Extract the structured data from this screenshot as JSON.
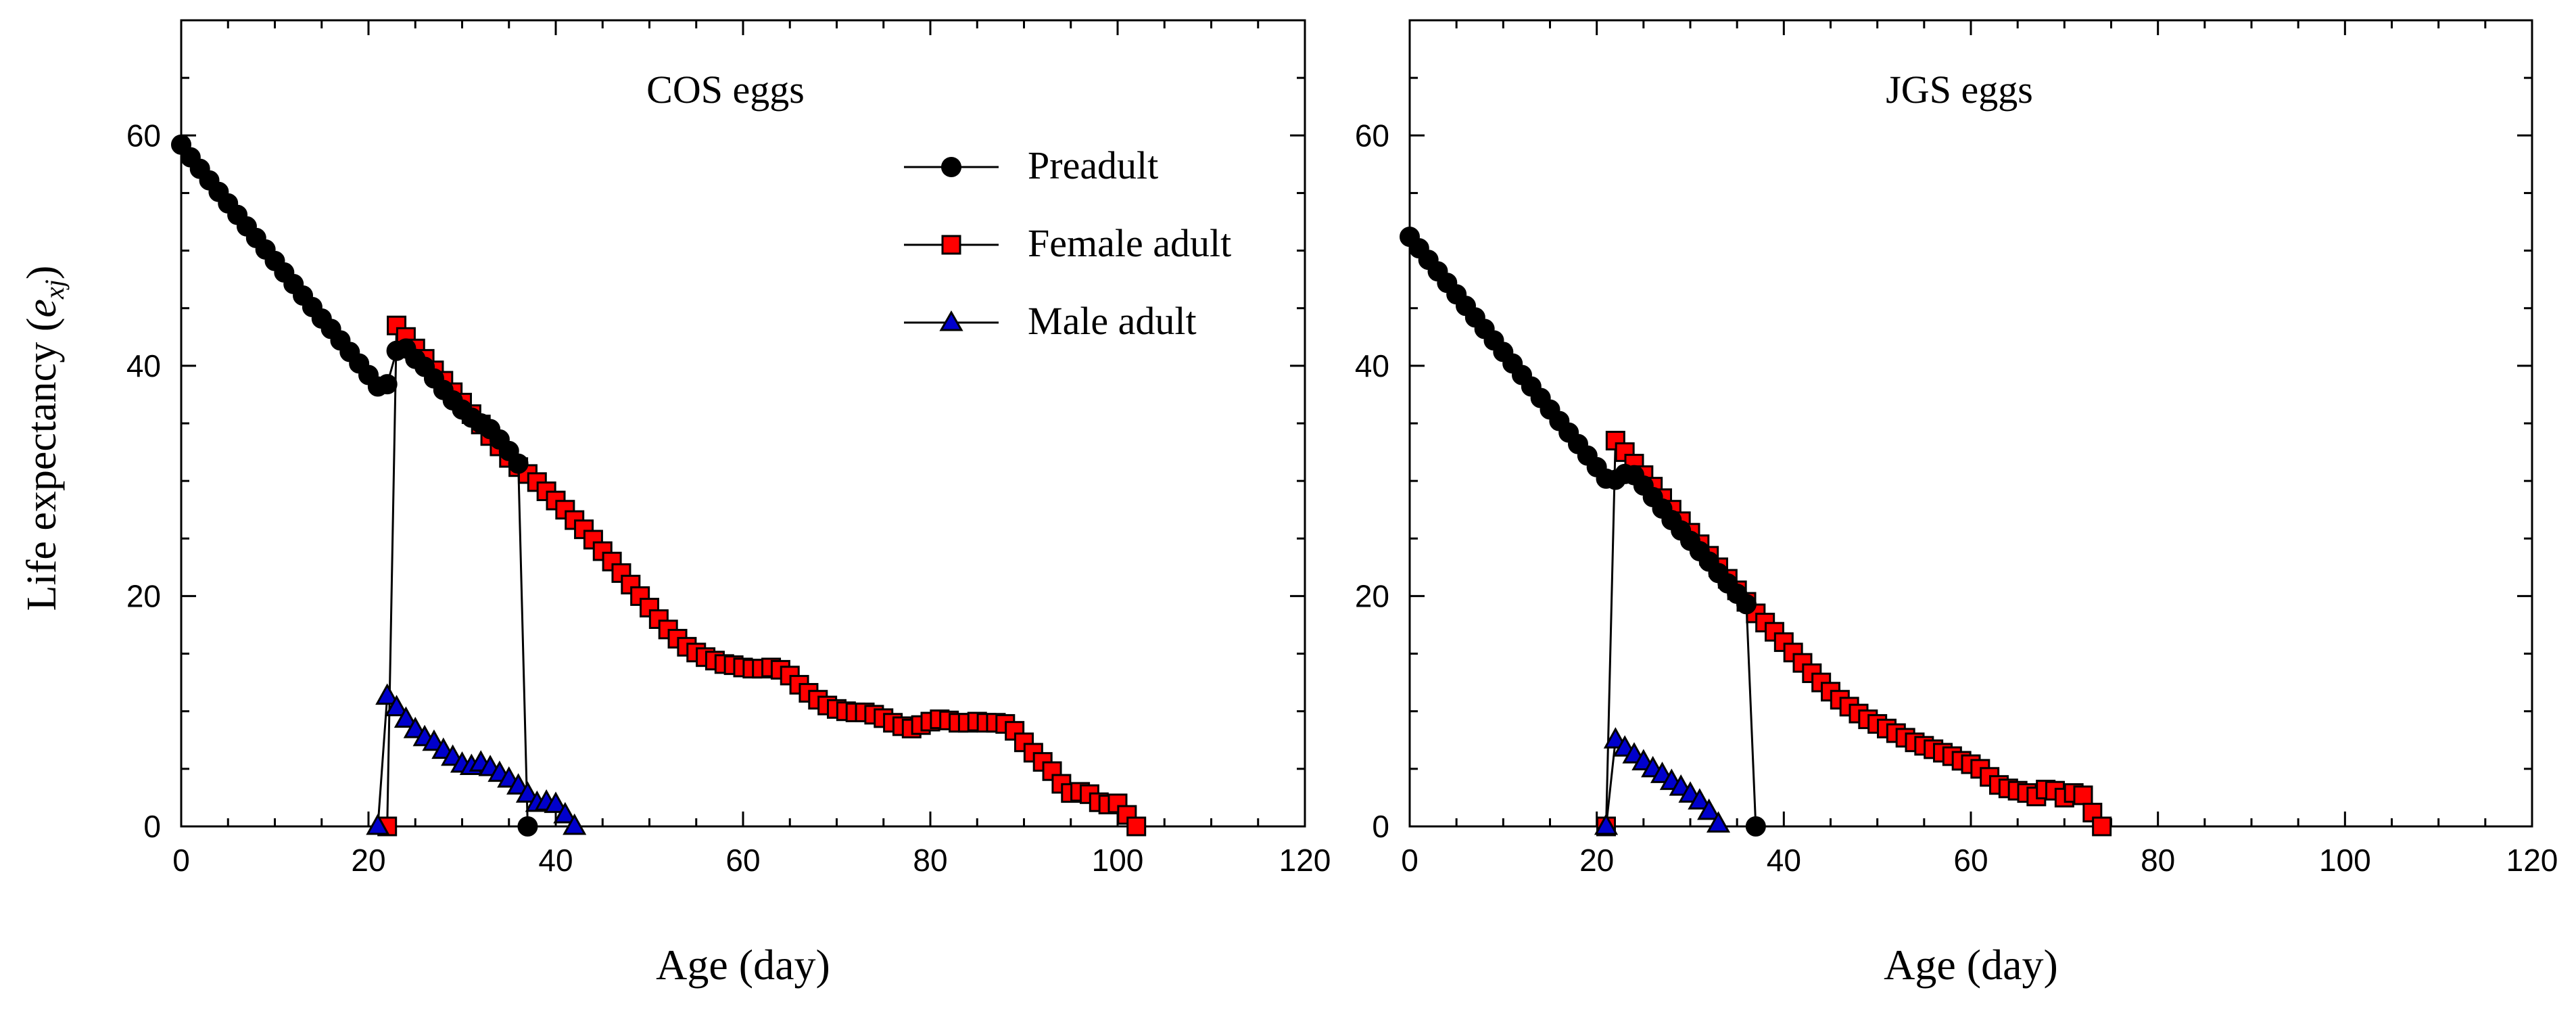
{
  "figure": {
    "ylabel_main": "Life expectancy (",
    "ylabel_sym": "e",
    "ylabel_sub": "xj",
    "ylabel_close": ")"
  },
  "legend": [
    {
      "label": "Preadult",
      "marker": "circle",
      "color": "#000000"
    },
    {
      "label": "Female adult",
      "marker": "square",
      "color": "#ff0000"
    },
    {
      "label": "Male adult",
      "marker": "triangle",
      "color": "#0000cc"
    }
  ],
  "chart_data": [
    {
      "type": "line",
      "title": "COS eggs",
      "xlabel": "Age (day)",
      "ylabel": "Life expectancy (e_xj)",
      "xlim": [
        0,
        120
      ],
      "ylim": [
        0,
        70
      ],
      "xticks": [
        0,
        20,
        40,
        60,
        80,
        100,
        120
      ],
      "yticks": [
        0,
        20,
        40,
        60
      ],
      "legend_position": "top-right",
      "series": [
        {
          "name": "Preadult",
          "x": [
            0,
            1,
            2,
            3,
            4,
            5,
            6,
            7,
            8,
            9,
            10,
            11,
            12,
            13,
            14,
            15,
            16,
            17,
            18,
            19,
            20,
            21,
            22,
            23,
            24,
            25,
            26,
            27,
            28,
            29,
            30,
            31,
            32,
            33,
            34,
            35,
            36,
            37
          ],
          "y": [
            59.2,
            58.1,
            57.1,
            56.1,
            55.1,
            54.1,
            53.1,
            52.1,
            51.1,
            50.1,
            49.1,
            48.1,
            47.1,
            46.1,
            45.1,
            44.1,
            43.2,
            42.2,
            41.2,
            40.2,
            39.2,
            38.2,
            38.4,
            41.3,
            41.5,
            40.6,
            39.9,
            38.9,
            37.9,
            37.0,
            36.2,
            35.5,
            35.0,
            34.5,
            33.6,
            32.6,
            31.5,
            0
          ]
        },
        {
          "name": "Female adult",
          "x": [
            22,
            23,
            24,
            25,
            26,
            27,
            28,
            29,
            30,
            31,
            32,
            33,
            34,
            35,
            36,
            37,
            38,
            39,
            40,
            41,
            42,
            43,
            44,
            45,
            46,
            47,
            48,
            49,
            50,
            51,
            52,
            53,
            54,
            55,
            56,
            57,
            58,
            59,
            60,
            61,
            62,
            63,
            64,
            65,
            66,
            67,
            68,
            69,
            70,
            71,
            72,
            73,
            74,
            75,
            76,
            77,
            78,
            79,
            80,
            81,
            82,
            83,
            84,
            85,
            86,
            87,
            88,
            89,
            90,
            91,
            92,
            93,
            94,
            95,
            96,
            97,
            98,
            99,
            100,
            101,
            102
          ],
          "y": [
            0,
            43.5,
            42.5,
            41.5,
            40.6,
            39.6,
            38.7,
            37.7,
            36.8,
            35.8,
            34.9,
            33.9,
            33.0,
            32.0,
            31.2,
            30.6,
            29.9,
            29.1,
            28.3,
            27.5,
            26.6,
            25.8,
            24.9,
            23.9,
            23.0,
            22.0,
            21.0,
            20.0,
            19.0,
            18.0,
            17.1,
            16.3,
            15.6,
            15.1,
            14.7,
            14.4,
            14.1,
            14.0,
            13.8,
            13.7,
            13.7,
            13.8,
            13.6,
            13.1,
            12.3,
            11.6,
            11.0,
            10.5,
            10.2,
            10.0,
            9.9,
            9.9,
            9.7,
            9.4,
            9.0,
            8.7,
            8.5,
            8.8,
            9.1,
            9.3,
            9.2,
            9.0,
            9.0,
            9.1,
            9.0,
            9.0,
            8.9,
            8.3,
            7.3,
            6.4,
            5.6,
            4.8,
            3.7,
            2.9,
            3.0,
            2.8,
            2.1,
            1.9,
            2.0,
            1.0,
            0
          ]
        },
        {
          "name": "Male adult",
          "x": [
            21,
            22,
            23,
            24,
            25,
            26,
            27,
            28,
            29,
            30,
            31,
            32,
            33,
            34,
            35,
            36,
            37,
            38,
            39,
            40,
            41,
            42
          ],
          "y": [
            0,
            11.3,
            10.3,
            9.3,
            8.4,
            7.7,
            7.3,
            6.6,
            6.0,
            5.4,
            5.2,
            5.5,
            5.1,
            4.6,
            4.1,
            3.5,
            2.8,
            2.0,
            2.1,
            1.9,
            1.0,
            0
          ]
        }
      ]
    },
    {
      "type": "line",
      "title": "JGS eggs",
      "xlabel": "Age (day)",
      "ylabel": "",
      "xlim": [
        0,
        120
      ],
      "ylim": [
        0,
        70
      ],
      "xticks": [
        0,
        20,
        40,
        60,
        80,
        100,
        120
      ],
      "yticks": [
        0,
        20,
        40,
        60
      ],
      "series": [
        {
          "name": "Preadult",
          "x": [
            0,
            1,
            2,
            3,
            4,
            5,
            6,
            7,
            8,
            9,
            10,
            11,
            12,
            13,
            14,
            15,
            16,
            17,
            18,
            19,
            20,
            21,
            22,
            23,
            24,
            25,
            26,
            27,
            28,
            29,
            30,
            31,
            32,
            33,
            34,
            35,
            36,
            37
          ],
          "y": [
            51.2,
            50.2,
            49.2,
            48.2,
            47.2,
            46.2,
            45.2,
            44.2,
            43.2,
            42.2,
            41.2,
            40.2,
            39.2,
            38.2,
            37.2,
            36.2,
            35.2,
            34.2,
            33.2,
            32.2,
            31.2,
            30.2,
            30.1,
            30.6,
            30.5,
            29.6,
            28.6,
            27.6,
            26.6,
            25.7,
            24.8,
            23.9,
            23.0,
            22.0,
            21.1,
            20.2,
            19.3,
            0
          ]
        },
        {
          "name": "Female adult",
          "x": [
            21,
            22,
            23,
            24,
            25,
            26,
            27,
            28,
            29,
            30,
            31,
            32,
            33,
            34,
            35,
            36,
            37,
            38,
            39,
            40,
            41,
            42,
            43,
            44,
            45,
            46,
            47,
            48,
            49,
            50,
            51,
            52,
            53,
            54,
            55,
            56,
            57,
            58,
            59,
            60,
            61,
            62,
            63,
            64,
            65,
            66,
            67,
            68,
            69,
            70,
            71,
            72,
            73,
            74
          ],
          "y": [
            0,
            33.5,
            32.5,
            31.5,
            30.5,
            29.5,
            28.5,
            27.5,
            26.5,
            25.5,
            24.5,
            23.5,
            22.5,
            21.5,
            20.5,
            19.5,
            18.5,
            17.7,
            16.9,
            16.0,
            15.1,
            14.2,
            13.3,
            12.5,
            11.7,
            11.0,
            10.4,
            9.8,
            9.3,
            8.9,
            8.5,
            8.1,
            7.7,
            7.3,
            7.0,
            6.7,
            6.4,
            6.1,
            5.7,
            5.4,
            5.0,
            4.3,
            3.6,
            3.3,
            3.1,
            2.9,
            2.6,
            3.2,
            3.1,
            2.5,
            2.9,
            2.7,
            1.2,
            0
          ]
        },
        {
          "name": "Male adult",
          "x": [
            21,
            22,
            23,
            24,
            25,
            26,
            27,
            28,
            29,
            30,
            31,
            32,
            33
          ],
          "y": [
            0,
            7.5,
            6.8,
            6.2,
            5.6,
            5.0,
            4.5,
            3.9,
            3.4,
            2.8,
            2.2,
            1.3,
            0.2
          ]
        }
      ]
    }
  ]
}
